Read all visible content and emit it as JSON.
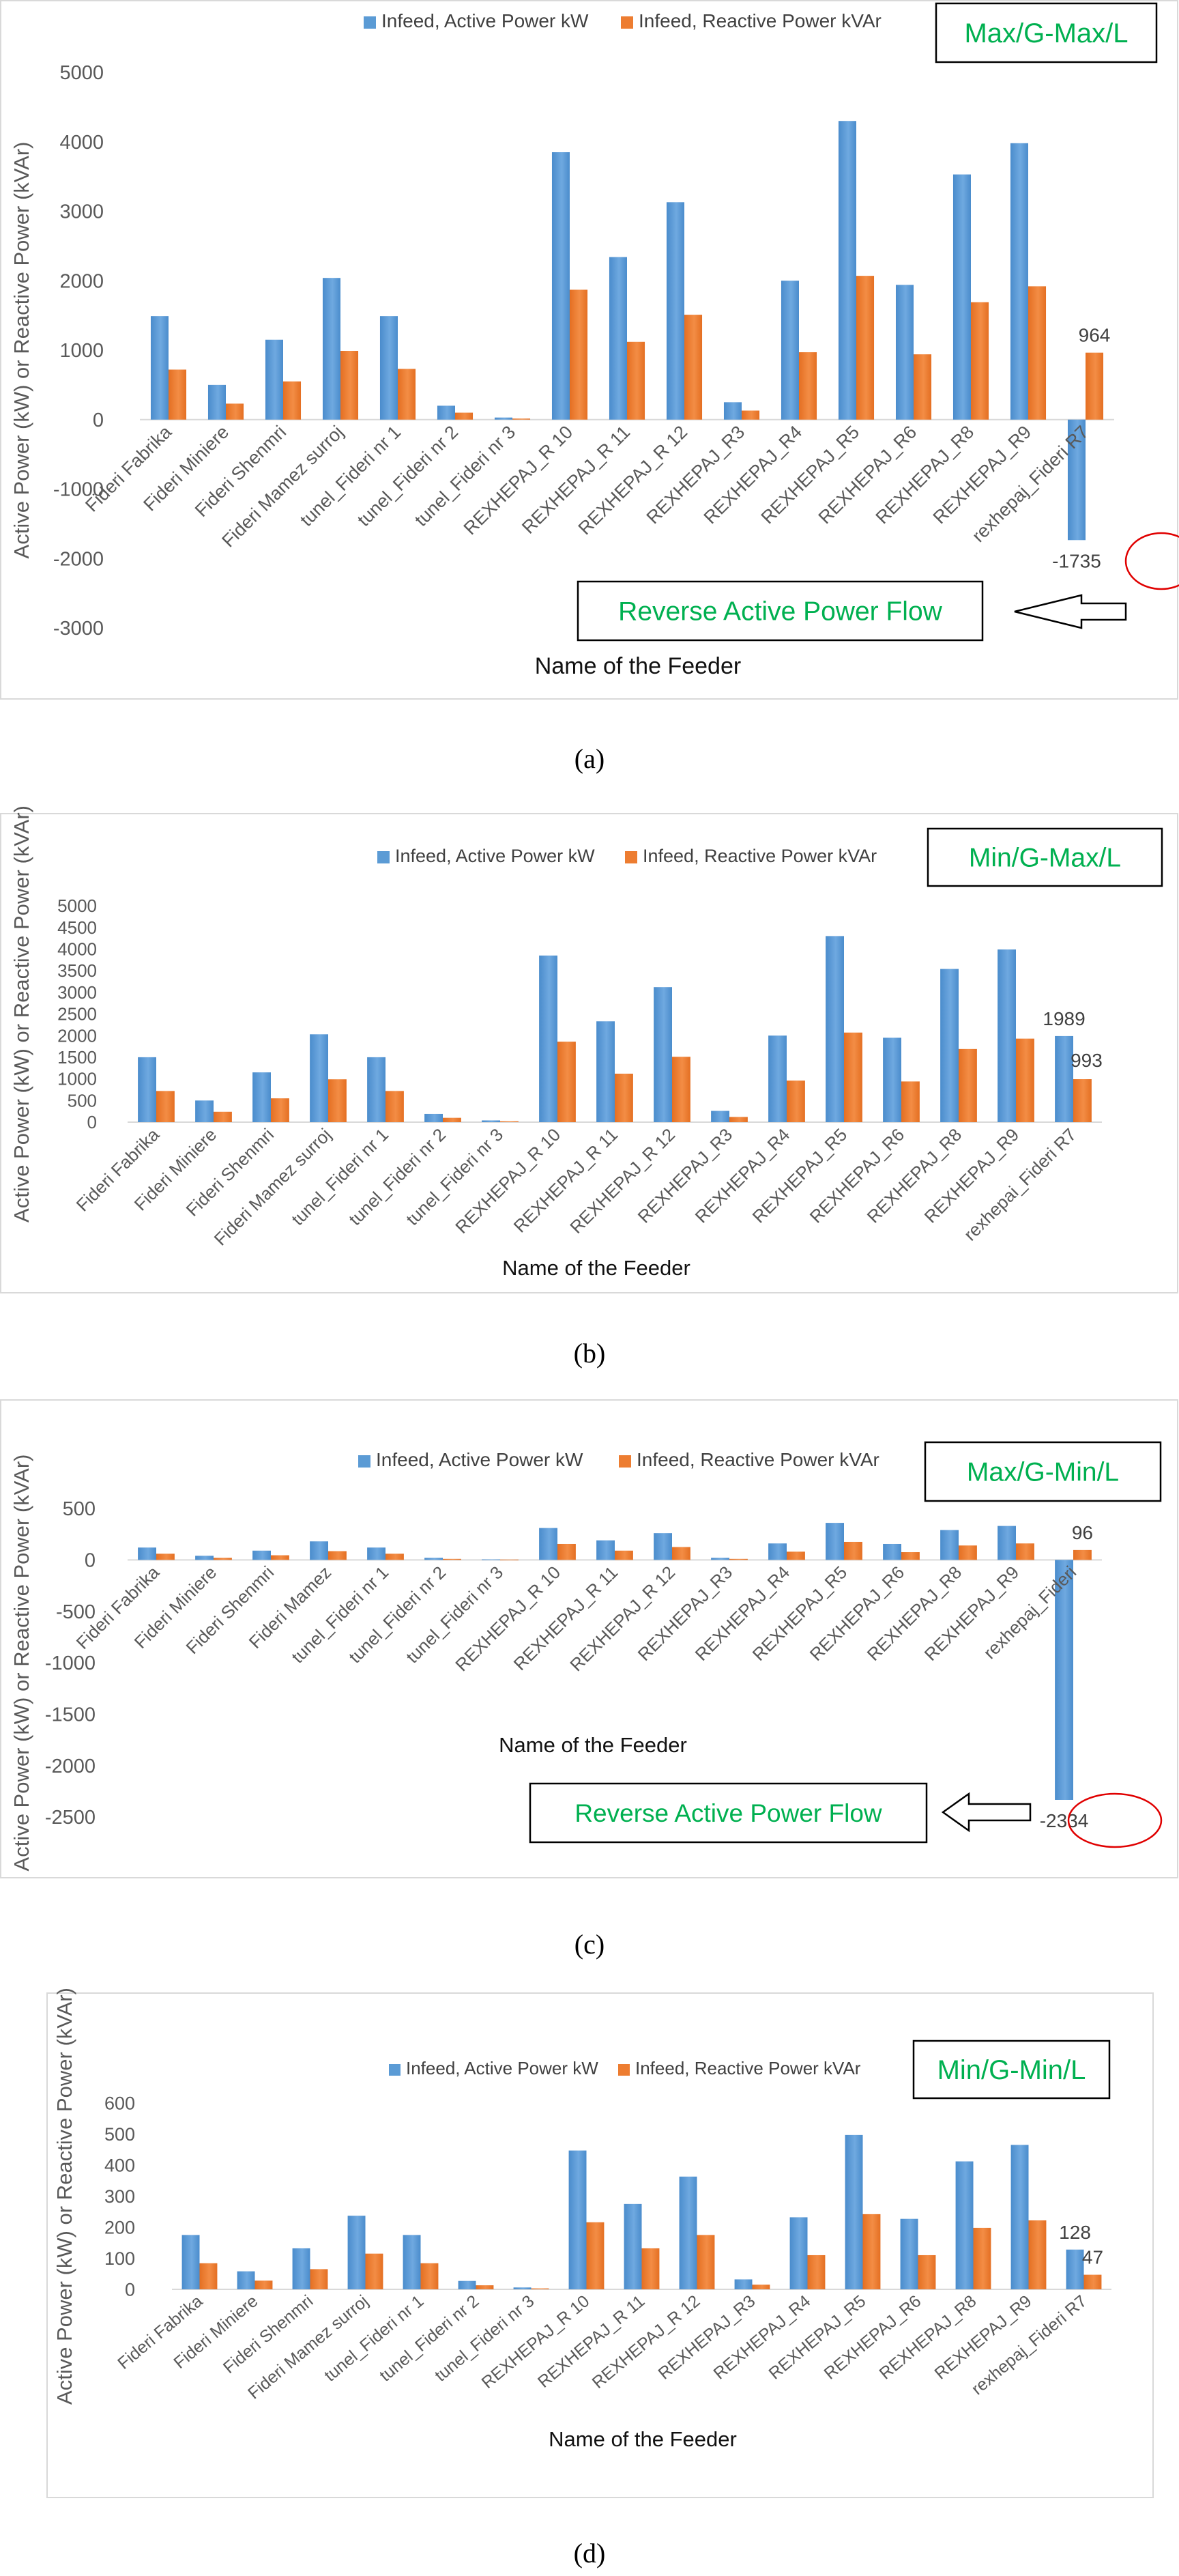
{
  "chart_data": [
    {
      "type": "bar",
      "panel_label": "(a)",
      "scenario": "Max/G-Max/L",
      "xlabel": "Name of the Feeder",
      "ylabel": "Active Power (kW) or Reactive Power (kVAr)",
      "ylim": [
        -3000,
        5000
      ],
      "yticks": [
        -3000,
        -2000,
        -1000,
        0,
        1000,
        2000,
        3000,
        4000,
        5000
      ],
      "grid": false,
      "legend_position": "top",
      "categories": [
        "Fideri Fabrika",
        "Fideri Miniere",
        "Fideri Shenmri",
        "Fideri Mamez surroj",
        "tunel_Fideri nr 1",
        "tunel_Fideri nr 2",
        "tunel_Fideri nr 3",
        "REXHEPAJ_R 10",
        "REXHEPAJ_R 11",
        "REXHEPAJ_R 12",
        "REXHEPAJ_R3",
        "REXHEPAJ_R4",
        "REXHEPAJ_R5",
        "REXHEPAJ_R6",
        "REXHEPAJ_R8",
        "REXHEPAJ_R9",
        "rexhepaj_Fideri R7"
      ],
      "series": [
        {
          "name": "Infeed, Active Power kW",
          "color": "#5b9bd5",
          "values": [
            1490,
            500,
            1150,
            2040,
            1490,
            200,
            30,
            3850,
            2340,
            3130,
            250,
            2000,
            4300,
            1940,
            3530,
            3980,
            -1735
          ]
        },
        {
          "name": "Infeed, Reactive Power kVAr",
          "color": "#ed7d31",
          "values": [
            720,
            230,
            550,
            990,
            730,
            100,
            15,
            1870,
            1120,
            1510,
            130,
            970,
            2070,
            940,
            1690,
            1920,
            964
          ]
        }
      ],
      "data_labels": [
        {
          "category": "rexhepaj_Fideri R7",
          "series": "Infeed, Reactive Power kVAr",
          "text": "964"
        },
        {
          "category": "rexhepaj_Fideri R7",
          "series": "Infeed, Active Power kW",
          "text": "-1735"
        }
      ],
      "annotation": "Reverse Active Power Flow"
    },
    {
      "type": "bar",
      "panel_label": "(b)",
      "scenario": "Min/G-Max/L",
      "xlabel": "Name of the Feeder",
      "ylabel": "Active Power (kW) or Reactive Power (kVAr)",
      "ylim": [
        0,
        5000
      ],
      "yticks": [
        0,
        500,
        1000,
        1500,
        2000,
        2500,
        3000,
        3500,
        4000,
        4500,
        5000
      ],
      "grid": false,
      "legend_position": "top",
      "categories": [
        "Fideri Fabrika",
        "Fideri Miniere",
        "Fideri Shenmri",
        "Fideri Mamez surroj",
        "tunel_Fideri nr 1",
        "tunel_Fideri nr 2",
        "tunel_Fideri nr 3",
        "REXHEPAJ_R 10",
        "REXHEPAJ_R 11",
        "REXHEPAJ_R 12",
        "REXHEPAJ_R3",
        "REXHEPAJ_R4",
        "REXHEPAJ_R5",
        "REXHEPAJ_R6",
        "REXHEPAJ_R8",
        "REXHEPAJ_R9",
        "rexhepai_Fideri R7"
      ],
      "series": [
        {
          "name": "Infeed, Active Power kW",
          "color": "#5b9bd5",
          "values": [
            1500,
            500,
            1150,
            2030,
            1500,
            190,
            40,
            3850,
            2330,
            3120,
            260,
            2000,
            4300,
            1950,
            3540,
            3990,
            1989
          ]
        },
        {
          "name": "Infeed, Reactive Power kVAr",
          "color": "#ed7d31",
          "values": [
            720,
            240,
            550,
            990,
            720,
            100,
            20,
            1860,
            1120,
            1510,
            120,
            960,
            2070,
            940,
            1690,
            1930,
            993
          ]
        }
      ],
      "data_labels": [
        {
          "category": "rexhepai_Fideri R7",
          "series": "Infeed, Active Power kW",
          "text": "1989"
        },
        {
          "category": "rexhepai_Fideri R7",
          "series": "Infeed, Reactive Power kVAr",
          "text": "993"
        }
      ],
      "annotation": ""
    },
    {
      "type": "bar",
      "panel_label": "(c)",
      "scenario": "Max/G-Min/L",
      "xlabel": "Name of the Feeder",
      "ylabel": "Active Power (kW) or Reactive Power (kVAr)",
      "ylim": [
        -2500,
        500
      ],
      "yticks": [
        -2500,
        -2000,
        -1500,
        -1000,
        -500,
        0,
        500
      ],
      "grid": false,
      "legend_position": "top",
      "categories": [
        "Fideri Fabrika",
        "Fideri Miniere",
        "Fideri Shenmri",
        "Fideri Mamez",
        "tunel_Fideri nr 1",
        "tunel_Fideri nr 2",
        "tunel_Fideri nr 3",
        "REXHEPAJ_R 10",
        "REXHEPAJ_R 11",
        "REXHEPAJ_R 12",
        "REXHEPAJ_R3",
        "REXHEPAJ_R4",
        "REXHEPAJ_R5",
        "REXHEPAJ_R6",
        "REXHEPAJ_R8",
        "REXHEPAJ_R9",
        "rexhepaj_Fideri"
      ],
      "series": [
        {
          "name": "Infeed, Active Power kW",
          "color": "#5b9bd5",
          "values": [
            120,
            40,
            90,
            180,
            120,
            20,
            5,
            310,
            190,
            260,
            20,
            160,
            360,
            155,
            290,
            330,
            -2334
          ]
        },
        {
          "name": "Infeed, Reactive Power kVAr",
          "color": "#ed7d31",
          "values": [
            60,
            20,
            45,
            85,
            60,
            10,
            3,
            155,
            90,
            125,
            10,
            80,
            175,
            75,
            140,
            160,
            96
          ]
        }
      ],
      "data_labels": [
        {
          "category": "rexhepaj_Fideri",
          "series": "Infeed, Reactive Power kVAr",
          "text": "96"
        },
        {
          "category": "rexhepaj_Fideri",
          "series": "Infeed, Active Power kW",
          "text": "-2334"
        }
      ],
      "annotation": "Reverse Active Power Flow"
    },
    {
      "type": "bar",
      "panel_label": "(d)",
      "scenario": "Min/G-Min/L",
      "xlabel": "Name of the Feeder",
      "ylabel": "Active Power (kW) or Reactive Power (kVAr)",
      "ylim": [
        0,
        600
      ],
      "yticks": [
        0,
        100,
        200,
        300,
        400,
        500,
        600
      ],
      "grid": false,
      "legend_position": "top",
      "categories": [
        "Fideri Fabrika",
        "Fideri Miniere",
        "Fideri Shenmri",
        "Fideri Mamez surroj",
        "tunel_Fideri nr 1",
        "tunel_Fideri nr 2",
        "tunel_Fideri nr 3",
        "REXHEPAJ_R 10",
        "REXHEPAJ_R 11",
        "REXHEPAJ_R 12",
        "REXHEPAJ_R3",
        "REXHEPAJ_R4",
        "REXHEPAJ_R5",
        "REXHEPAJ_R6",
        "REXHEPAJ_R8",
        "REXHEPAJ_R9",
        "rexhepaj_Fideri R7"
      ],
      "series": [
        {
          "name": "Infeed, Active Power kW",
          "color": "#5b9bd5",
          "values": [
            175,
            58,
            132,
            237,
            175,
            27,
            6,
            447,
            275,
            363,
            32,
            232,
            497,
            227,
            412,
            465,
            128
          ]
        },
        {
          "name": "Infeed, Reactive Power kVAr",
          "color": "#ed7d31",
          "values": [
            84,
            28,
            65,
            115,
            84,
            13,
            3,
            216,
            132,
            175,
            15,
            110,
            242,
            110,
            198,
            222,
            47
          ]
        }
      ],
      "data_labels": [
        {
          "category": "rexhepaj_Fideri R7",
          "series": "Infeed, Active Power kW",
          "text": "128"
        },
        {
          "category": "rexhepaj_Fideri R7",
          "series": "Infeed, Reactive Power kVAr",
          "text": "47"
        }
      ],
      "annotation": ""
    }
  ]
}
